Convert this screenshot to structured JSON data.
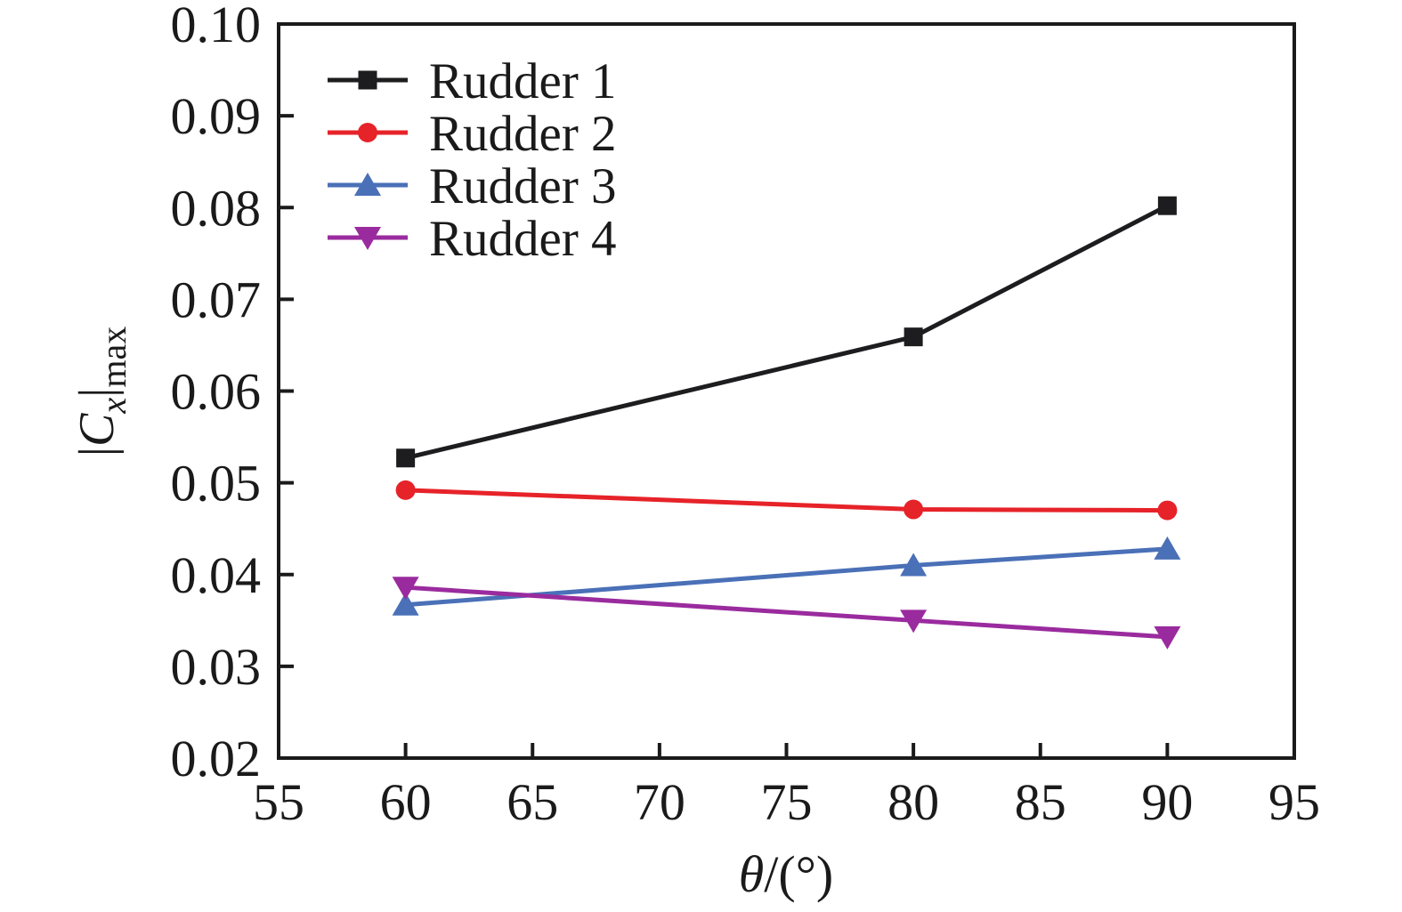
{
  "figure": {
    "background": "#ffffff",
    "text_color": "#1a1a1a",
    "axis_color": "#1a1a1a"
  },
  "chart_data": {
    "type": "line",
    "title": "",
    "xlabel": "θ/(°)",
    "ylabel": "|Cx|max",
    "xlabel_rich": [
      {
        "t": "θ",
        "style": "italic",
        "pos": "base"
      },
      {
        "t": "/(°)",
        "style": "normal",
        "pos": "base"
      }
    ],
    "ylabel_rich": [
      {
        "t": "|",
        "style": "normal",
        "pos": "base"
      },
      {
        "t": "C",
        "style": "italic",
        "pos": "base"
      },
      {
        "t": "x",
        "style": "italic",
        "pos": "sub"
      },
      {
        "t": "|",
        "style": "normal",
        "pos": "base"
      },
      {
        "t": "max",
        "style": "normal",
        "pos": "sub"
      }
    ],
    "x": [
      60,
      80,
      90
    ],
    "series": [
      {
        "name": "Rudder 1",
        "marker": "square",
        "color": "#1d1d1f",
        "values": [
          0.0527,
          0.0659,
          0.0802
        ]
      },
      {
        "name": "Rudder 2",
        "marker": "circle",
        "color": "#e62329",
        "values": [
          0.0492,
          0.0471,
          0.047
        ]
      },
      {
        "name": "Rudder 3",
        "marker": "triangle-up",
        "color": "#4a70b7",
        "values": [
          0.0367,
          0.041,
          0.0428
        ]
      },
      {
        "name": "Rudder 4",
        "marker": "triangle-down",
        "color": "#9a2b9e",
        "values": [
          0.0386,
          0.035,
          0.0332
        ]
      }
    ],
    "xlim": [
      55,
      95
    ],
    "ylim": [
      0.02,
      0.1
    ],
    "xticks": [
      55,
      60,
      65,
      70,
      75,
      80,
      85,
      90,
      95
    ],
    "ytick_labels": [
      "0.02",
      "0.03",
      "0.04",
      "0.05",
      "0.06",
      "0.07",
      "0.08",
      "0.09",
      "0.10"
    ],
    "grid": false,
    "legend": {
      "position": "upper-left-inside",
      "entries": [
        "Rudder 1",
        "Rudder 2",
        "Rudder 3",
        "Rudder 4"
      ]
    }
  }
}
